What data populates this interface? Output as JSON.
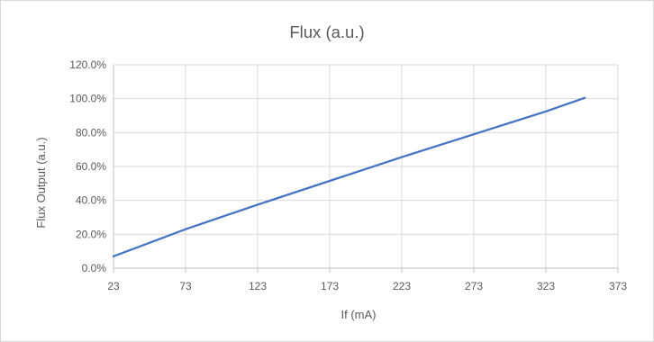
{
  "chart_data": {
    "type": "line",
    "title": "Flux (a.u.)",
    "xlabel": "If (mA)",
    "ylabel": "Flux Output (a.u.)",
    "xlim": [
      23,
      373
    ],
    "ylim": [
      0,
      120
    ],
    "x_ticks": [
      "23",
      "73",
      "123",
      "173",
      "223",
      "273",
      "323",
      "373"
    ],
    "y_ticks": [
      "0.0%",
      "20.0%",
      "40.0%",
      "60.0%",
      "80.0%",
      "100.0%",
      "120.0%"
    ],
    "grid": true,
    "legend": "none",
    "series": [
      {
        "color": "#4472c4",
        "x": [
          23,
          73,
          123,
          173,
          223,
          273,
          323,
          350
        ],
        "y": [
          7,
          23,
          37.5,
          51.5,
          65.5,
          79,
          92.5,
          100.5
        ]
      }
    ]
  }
}
